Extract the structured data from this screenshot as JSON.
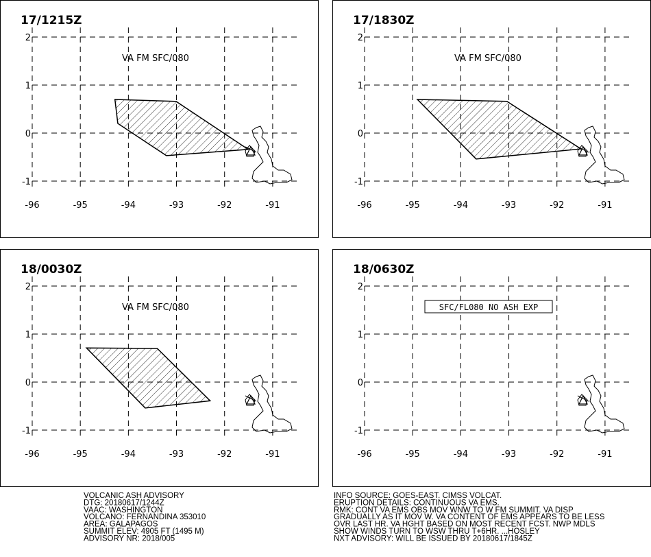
{
  "axes": {
    "xlim": [
      -96,
      -90.5
    ],
    "ylim": [
      -1.2,
      2.2
    ],
    "xticks": [
      -96,
      -95,
      -94,
      -93,
      -92,
      -91
    ],
    "yticks": [
      2,
      1,
      0,
      -1
    ]
  },
  "panels": [
    {
      "time": "17/1215Z",
      "annotation": "VA FM SFC/080",
      "polygon": {
        "lon": [
          -94.28,
          -93.01,
          -91.51,
          -93.21,
          -94.22
        ],
        "lat": [
          0.7,
          0.66,
          -0.34,
          -0.47,
          0.2
        ]
      }
    },
    {
      "time": "17/1830Z",
      "annotation": "VA FM SFC/080",
      "polygon": {
        "lon": [
          -94.9,
          -93.04,
          -91.5,
          -93.68
        ],
        "lat": [
          0.7,
          0.66,
          -0.33,
          -0.54
        ]
      }
    },
    {
      "time": "18/0030Z",
      "annotation": "VA FM SFC/080",
      "polygon": {
        "lon": [
          -94.87,
          -93.4,
          -92.3,
          -93.65
        ],
        "lat": [
          0.71,
          0.7,
          -0.39,
          -0.54
        ]
      }
    },
    {
      "time": "18/0630Z",
      "annotation_boxed": "SFC/FL080 NO ASH EXP"
    }
  ],
  "footer": {
    "left": [
      "VOLCANIC ASH ADVISORY",
      "DTG: 20180617/1244Z",
      "VAAC: WASHINGTON",
      "VOLCANO: FERNANDINA 353010",
      "AREA: GALAPAGOS",
      "SUMMIT ELEV: 4905 FT (1495 M)",
      "ADVISORY NR: 2018/005"
    ],
    "right": [
      "INFO SOURCE: GOES-EAST. CIMSS VOLCAT.",
      "ERUPTION DETAILS: CONTINUOUS VA EMS.",
      "RMK: CONT VA EMS OBS MOV WNW TO W FM SUMMIT. VA DISP",
      "GRADUALLY AS IT MOV W. VA CONTENT OF EMS APPEARS TO BE LESS",
      "OVR LAST HR. VA HGHT BASED ON MOST RECENT FCST. NWP MDLS",
      "SHOW WINDS TURN TO WSW THRU T+6HR. ...HOSLEY",
      "NXT ADVISORY: WILL BE ISSUED BY 20180617/1845Z"
    ]
  }
}
